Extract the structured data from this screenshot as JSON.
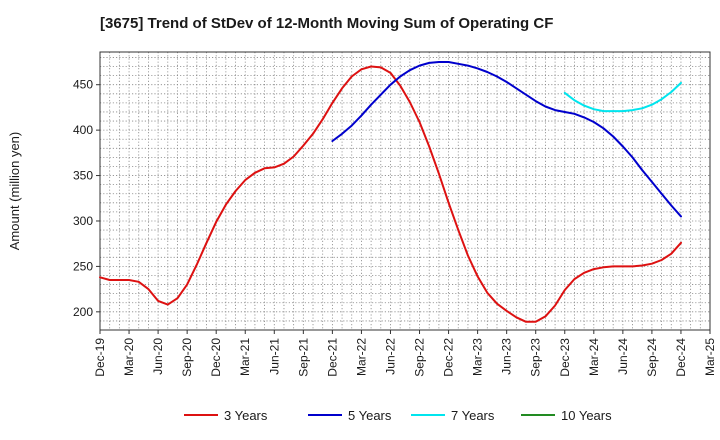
{
  "chart_data": {
    "type": "line",
    "title": "[3675]  Trend of StDev of 12-Month Moving Sum of Operating CF",
    "xlabel": "",
    "ylabel": "Amount (million yen)",
    "ylim": [
      180,
      486
    ],
    "yticks": [
      200,
      250,
      300,
      350,
      400,
      450
    ],
    "x_ticks": [
      "Dec-19",
      "Mar-20",
      "Jun-20",
      "Sep-20",
      "Dec-20",
      "Mar-21",
      "Jun-21",
      "Sep-21",
      "Dec-21",
      "Mar-22",
      "Jun-22",
      "Sep-22",
      "Dec-22",
      "Mar-23",
      "Jun-23",
      "Sep-23",
      "Dec-23",
      "Mar-24",
      "Jun-24",
      "Sep-24",
      "Dec-24",
      "Mar-25"
    ],
    "x_start": "Dec-19",
    "x_step_months": 1,
    "grid": true,
    "legend_position": "bottom",
    "series": [
      {
        "name": "3 Years",
        "color": "#dd1111",
        "start_index": 0,
        "values": [
          238,
          235,
          235,
          235,
          233,
          225,
          212,
          208,
          215,
          230,
          252,
          276,
          299,
          318,
          333,
          345,
          353,
          358,
          359,
          363,
          371,
          383,
          396,
          412,
          430,
          446,
          459,
          467,
          470,
          469,
          463,
          449,
          431,
          409,
          382,
          352,
          320,
          290,
          262,
          239,
          221,
          209,
          201,
          194,
          189,
          189,
          195,
          207,
          224,
          236,
          243,
          247,
          249,
          250,
          250,
          250,
          251,
          253,
          257,
          264,
          276
        ]
      },
      {
        "name": "5 Years",
        "color": "#0000cc",
        "start_index": 24,
        "values": [
          388,
          396,
          405,
          416,
          428,
          439,
          450,
          459,
          466,
          471,
          474,
          475,
          475,
          473,
          471,
          468,
          464,
          459,
          453,
          446,
          439,
          432,
          426,
          422,
          420,
          418,
          414,
          409,
          402,
          393,
          382,
          370,
          356,
          343,
          330,
          317,
          305
        ]
      },
      {
        "name": "7 Years",
        "color": "#00e5ee",
        "start_index": 48,
        "values": [
          441,
          433,
          427,
          423,
          421,
          421,
          421,
          422,
          424,
          428,
          434,
          442,
          452
        ]
      },
      {
        "name": "10 Years",
        "color": "#228b22",
        "start_index": 0,
        "values": []
      }
    ]
  }
}
